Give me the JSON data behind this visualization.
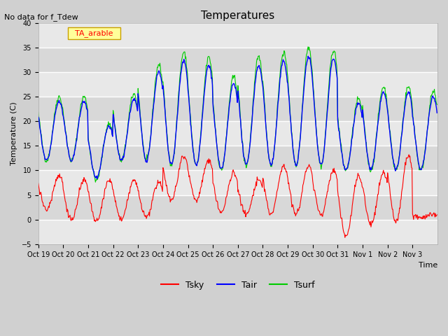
{
  "title": "Temperatures",
  "subtitle": "No data for f_Tdew",
  "legend_label": "TA_arable",
  "xlabel": "Time",
  "ylabel": "Temperature (C)",
  "ylim": [
    -5,
    40
  ],
  "yticks": [
    -5,
    0,
    5,
    10,
    15,
    20,
    25,
    30,
    35,
    40
  ],
  "x_labels": [
    "Oct 19",
    "Oct 20",
    "Oct 21",
    "Oct 22",
    "Oct 23",
    "Oct 24",
    "Oct 25",
    "Oct 26",
    "Oct 27",
    "Oct 28",
    "Oct 29",
    "Oct 30",
    "Oct 31",
    "Nov 1",
    "Nov 2",
    "Nov 3"
  ],
  "bg_color": "#e8e8e8",
  "line_colors": {
    "Tsky": "#ff0000",
    "Tair": "#0000ff",
    "Tsurf": "#00cc00"
  },
  "grid_color": "#ffffff",
  "legend_box_color": "#ffff99",
  "legend_box_edge": "#c8a000",
  "band_colors": [
    "#e8e8e8",
    "#d8d8d8"
  ],
  "n_days": 16,
  "pts_per_day": 48,
  "day_peaks_tsurf": [
    25,
    25,
    19.5,
    25.5,
    31.5,
    34,
    33,
    29,
    33,
    34,
    35,
    34.5,
    24.5,
    27,
    27,
    26
  ],
  "day_troughs_tsurf": [
    12,
    12,
    8,
    12,
    12,
    11,
    11,
    10,
    11,
    11,
    11,
    11,
    10,
    10,
    10,
    10
  ],
  "day_peaks_tsky": [
    9,
    8,
    8,
    8,
    7.5,
    13,
    12,
    9.5,
    8,
    11,
    11,
    10,
    9,
    9.5,
    13,
    1
  ],
  "day_troughs_tsky": [
    2,
    0,
    -0.5,
    0,
    0.5,
    4,
    4,
    1.5,
    1,
    1,
    1,
    1,
    -3.5,
    -1,
    -0.5,
    0.5
  ]
}
